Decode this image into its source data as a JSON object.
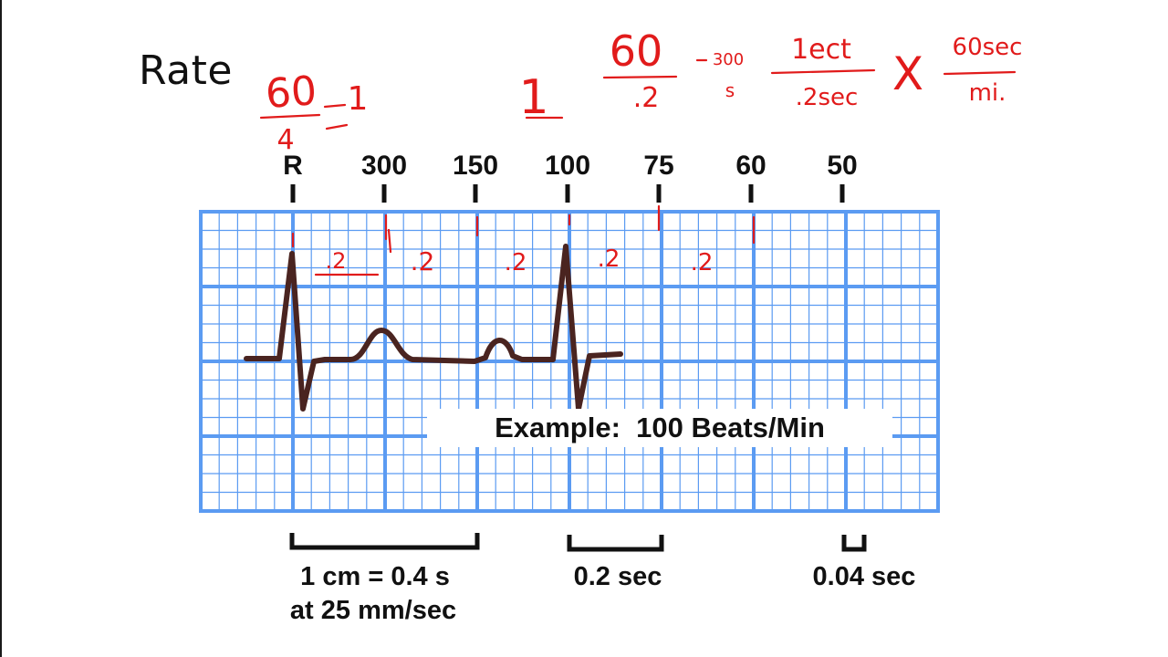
{
  "slide": {
    "title": "Rate"
  },
  "ecg": {
    "scale_labels": [
      "R",
      "300",
      "150",
      "100",
      "75",
      "60",
      "50"
    ],
    "example_label": "Example:  100 Beats/Min",
    "calibration": [
      {
        "lines": [
          "1 cm = 0.4 s",
          "at 25 mm/sec"
        ]
      },
      {
        "lines": [
          "0.2 sec"
        ]
      },
      {
        "lines": [
          "0.04 sec"
        ]
      }
    ],
    "colors": {
      "grid": "#5b9bf2",
      "grid_background": "#ffffff",
      "waveform": "#4a2420",
      "annotation_ink": "#e11b1b",
      "label_text": "#111111"
    }
  },
  "annotations": {
    "fraction_1": {
      "numerator": "60",
      "denominator": "4",
      "result": "1"
    },
    "standalone_one": "1",
    "fraction_2": {
      "numerator": "60",
      "denominator": ".2",
      "result": "300",
      "unit": "s"
    },
    "conversion": {
      "term1": {
        "numerator": "1ect",
        "denominator": ".2sec"
      },
      "operator": "X",
      "term2": {
        "numerator": "60sec",
        "denominator": "mi."
      }
    },
    "interval_labels": [
      ".2",
      ".2",
      ".2",
      ".2",
      ".2"
    ]
  }
}
